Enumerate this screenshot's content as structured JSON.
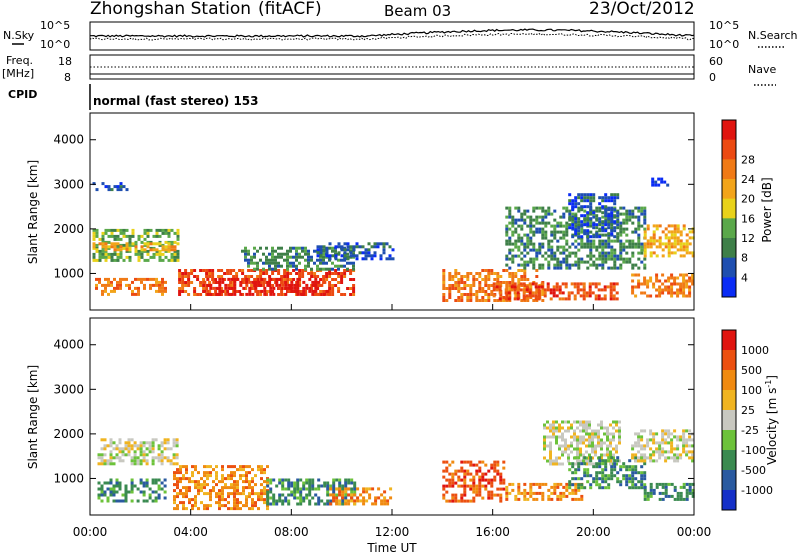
{
  "header": {
    "station": "Zhongshan Station",
    "mode": "(fitACF)",
    "beam": "Beam 03",
    "date": "23/Oct/2012",
    "cpid_label": "CPID",
    "cpid_text": "normal (fast stereo) 153"
  },
  "noise_panel": {
    "left_label": "N.Sky",
    "right_label": "N.Search",
    "left_ticks": [
      "10^5",
      "10^0"
    ],
    "right_ticks": [
      "10^5",
      "10^0"
    ]
  },
  "freq_panel": {
    "left_label_1": "Freq.",
    "left_label_2": "[MHz]",
    "right_label": "Nave",
    "left_ticks": [
      "18",
      "8"
    ],
    "right_ticks": [
      "60",
      "0"
    ]
  },
  "chart_data": [
    {
      "type": "heatmap",
      "quantity": "power",
      "ylabel": "Slant Range [km]",
      "ylim": [
        180,
        4600
      ],
      "yticks": [
        1000,
        2000,
        3000,
        4000
      ],
      "xlim": [
        "00:00",
        "24:00"
      ],
      "colorbar": {
        "label": "Power [dB]",
        "ticks": [
          "4",
          "8",
          "12",
          "16",
          "20",
          "24",
          "28"
        ],
        "colors": [
          "#0a2cf5",
          "#1f4fb0",
          "#3e7f48",
          "#5aa84a",
          "#e8d21a",
          "#f2a41a",
          "#f07a16",
          "#ec4a12",
          "#e0140f"
        ]
      },
      "regions": [
        {
          "t0": 0.1,
          "t1": 1.5,
          "r0": 2850,
          "r1": 3050,
          "level": 1
        },
        {
          "t0": 0.1,
          "t1": 3.5,
          "r0": 1300,
          "r1": 2000,
          "level": 3
        },
        {
          "t0": 0.1,
          "t1": 3.5,
          "r0": 1500,
          "r1": 1700,
          "level": 5
        },
        {
          "t0": 0.2,
          "t1": 3.0,
          "r0": 500,
          "r1": 900,
          "level": 6
        },
        {
          "t0": 3.5,
          "t1": 10.5,
          "r0": 500,
          "r1": 1100,
          "level": 7
        },
        {
          "t0": 4.5,
          "t1": 9.5,
          "r0": 500,
          "r1": 900,
          "level": 8
        },
        {
          "t0": 6.0,
          "t1": 10.5,
          "r0": 1100,
          "r1": 1600,
          "level": 2
        },
        {
          "t0": 9.0,
          "t1": 12.0,
          "r0": 1300,
          "r1": 1700,
          "level": 1
        },
        {
          "t0": 14.0,
          "t1": 18.0,
          "r0": 400,
          "r1": 1100,
          "level": 6
        },
        {
          "t0": 16.0,
          "t1": 21.0,
          "r0": 400,
          "r1": 800,
          "level": 7
        },
        {
          "t0": 16.5,
          "t1": 22.0,
          "r0": 1100,
          "r1": 2500,
          "level": 2
        },
        {
          "t0": 19.0,
          "t1": 21.0,
          "r0": 1800,
          "r1": 2800,
          "level": 1
        },
        {
          "t0": 21.5,
          "t1": 24.0,
          "r0": 500,
          "r1": 1000,
          "level": 6
        },
        {
          "t0": 22.0,
          "t1": 24.0,
          "r0": 1400,
          "r1": 2100,
          "level": 5
        },
        {
          "t0": 22.3,
          "t1": 23.0,
          "r0": 3000,
          "r1": 3150,
          "level": 0
        }
      ]
    },
    {
      "type": "heatmap",
      "quantity": "velocity",
      "ylabel": "Slant Range [km]",
      "ylim": [
        180,
        4600
      ],
      "yticks": [
        1000,
        2000,
        3000,
        4000
      ],
      "xlim": [
        "00:00",
        "24:00"
      ],
      "xticks": [
        "00:00",
        "04:00",
        "08:00",
        "12:00",
        "16:00",
        "20:00",
        "00:00"
      ],
      "xlabel": "Time UT",
      "colorbar": {
        "label_1": "Velocity",
        "label_2": "[m s",
        "label_exp": "-1",
        "label_3": "]",
        "ticks": [
          "1000",
          "500",
          "100",
          "25",
          "-25",
          "-100",
          "-500",
          "-1000"
        ],
        "colors": [
          "#1530c8",
          "#2a5aa0",
          "#3a8a50",
          "#6cc23a",
          "#c8c8c0",
          "#f0b420",
          "#f08a10",
          "#ec5010",
          "#e0140f"
        ]
      },
      "regions": [
        {
          "t0": 0.3,
          "t1": 3.5,
          "r0": 1300,
          "r1": 1900,
          "level": 4
        },
        {
          "t0": 0.3,
          "t1": 3.0,
          "r0": 500,
          "r1": 1000,
          "level": 2
        },
        {
          "t0": 3.3,
          "t1": 7.0,
          "r0": 300,
          "r1": 1300,
          "level": 6
        },
        {
          "t0": 7.0,
          "t1": 10.5,
          "r0": 400,
          "r1": 1000,
          "level": 2
        },
        {
          "t0": 9.5,
          "t1": 12.0,
          "r0": 400,
          "r1": 800,
          "level": 6
        },
        {
          "t0": 14.0,
          "t1": 16.5,
          "r0": 500,
          "r1": 1400,
          "level": 7
        },
        {
          "t0": 16.5,
          "t1": 19.5,
          "r0": 500,
          "r1": 900,
          "level": 6
        },
        {
          "t0": 18.0,
          "t1": 21.0,
          "r0": 1300,
          "r1": 2300,
          "level": 4
        },
        {
          "t0": 19.0,
          "t1": 22.0,
          "r0": 800,
          "r1": 1500,
          "level": 2
        },
        {
          "t0": 21.5,
          "t1": 24.0,
          "r0": 1400,
          "r1": 2100,
          "level": 4
        },
        {
          "t0": 22.0,
          "t1": 24.0,
          "r0": 500,
          "r1": 900,
          "level": 2
        }
      ]
    }
  ]
}
